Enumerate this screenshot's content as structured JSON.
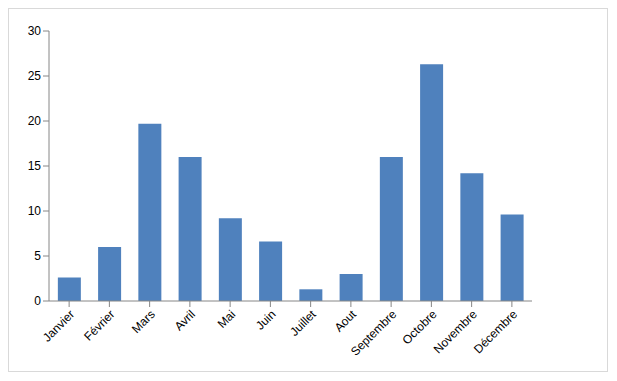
{
  "chart_data": {
    "type": "bar",
    "categories": [
      "Janvier",
      "Février",
      "Mars",
      "Avril",
      "Mai",
      "Juin",
      "Juillet",
      "Aout",
      "Septembre",
      "Octobre",
      "Novembre",
      "Décembre"
    ],
    "values": [
      2.6,
      6,
      19.7,
      16,
      9.2,
      6.6,
      1.3,
      3,
      16,
      26.3,
      14.2,
      9.6
    ],
    "color": "#4f81bd",
    "ylim": [
      0,
      30
    ],
    "yticks": [
      0,
      5,
      10,
      15,
      20,
      25,
      30
    ],
    "grid": false
  }
}
